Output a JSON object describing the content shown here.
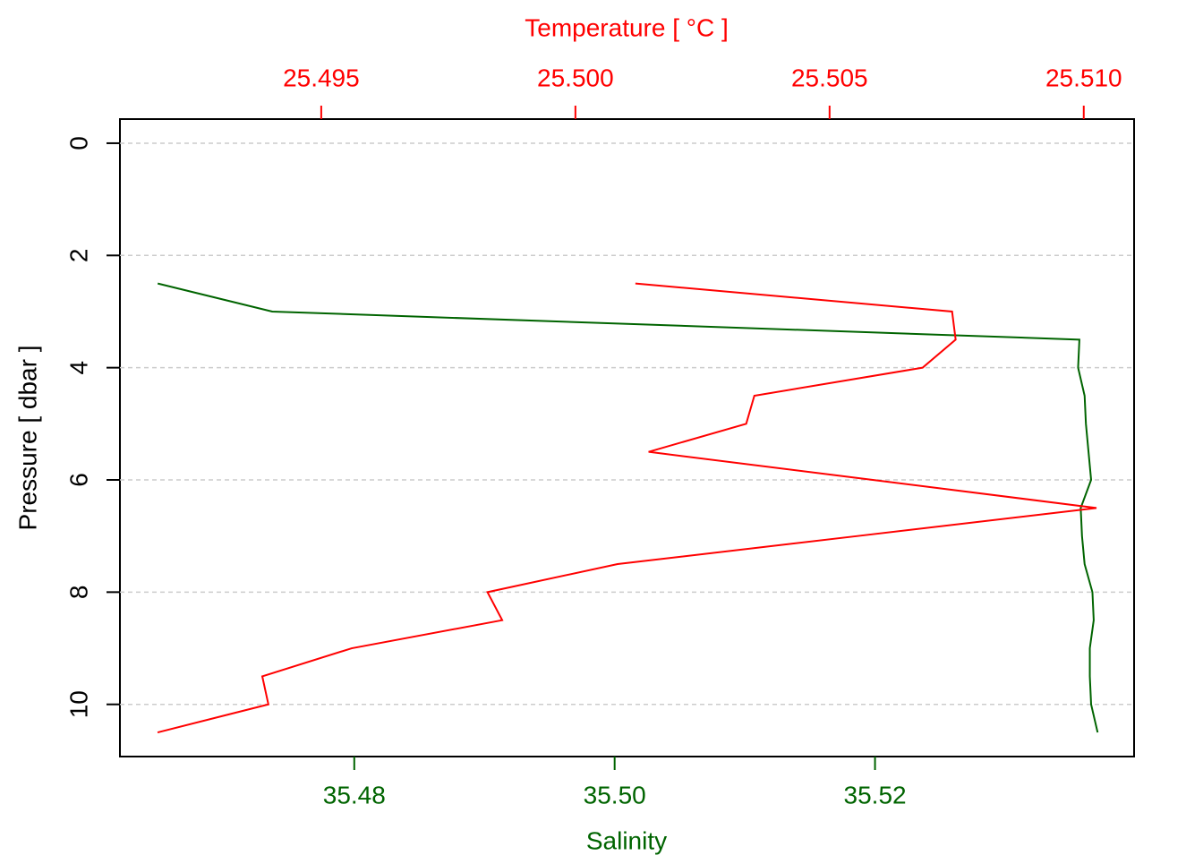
{
  "chart_data": {
    "type": "profile",
    "xlabel": "Salinity",
    "x2label": "Temperature [ °C ]",
    "ylabel": "Pressure [ dbar ]",
    "y": [
      2.5,
      3,
      3.5,
      4,
      4.5,
      5,
      5.5,
      6,
      6.5,
      7,
      7.5,
      8,
      8.5,
      9,
      9.5,
      10,
      10.5
    ],
    "series": [
      {
        "color": "#006400",
        "axis": "x",
        "values": [
          35.4649,
          35.4737,
          35.5357,
          35.5356,
          35.5361,
          35.5362,
          35.5364,
          35.5366,
          35.5358,
          35.5359,
          35.5361,
          35.5367,
          35.5368,
          35.5365,
          35.5365,
          35.5366,
          35.5371
        ]
      },
      {
        "color": "#ff0000",
        "axis": "x2",
        "values": [
          25.50118,
          25.50741,
          25.50748,
          25.50683,
          25.50352,
          25.50336,
          25.50144,
          25.50585,
          25.51025,
          25.50555,
          25.50083,
          25.49827,
          25.49856,
          25.4956,
          25.49384,
          25.49396,
          25.49178
        ]
      }
    ],
    "xlim": [
      35.462,
      35.5399
    ],
    "xticks": [
      35.48,
      {
        "value": 35.5,
        "label": "35.50"
      },
      35.52
    ],
    "x2lim": [
      25.49104,
      25.51099
    ],
    "x2ticks": [
      25.495,
      {
        "value": 25.5,
        "label": "25.500"
      },
      25.505,
      {
        "value": 25.51,
        "label": "25.510"
      }
    ],
    "ylim": [
      10.93,
      -0.43
    ],
    "yticks": [
      0,
      2,
      4,
      6,
      8,
      10
    ],
    "grid": true
  }
}
